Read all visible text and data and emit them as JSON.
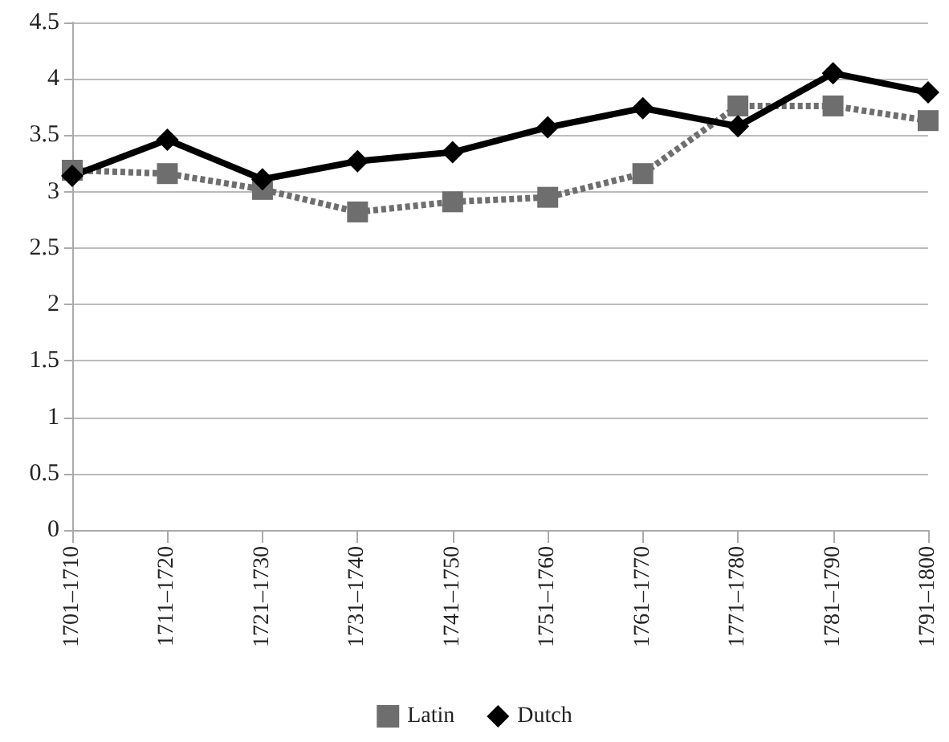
{
  "chart_data": {
    "type": "line",
    "categories": [
      "1701–1710",
      "1711–1720",
      "1721–1730",
      "1731–1740",
      "1741–1750",
      "1751–1760",
      "1761–1770",
      "1771–1780",
      "1781–1790",
      "1791–1800"
    ],
    "series": [
      {
        "name": "Latin",
        "color": "#6e6e6e",
        "marker": "square",
        "line_style": "dotted",
        "values": [
          3.19,
          3.16,
          3.02,
          2.82,
          2.91,
          2.95,
          3.16,
          3.76,
          3.76,
          3.63
        ]
      },
      {
        "name": "Dutch",
        "color": "#000000",
        "marker": "diamond",
        "line_style": "solid",
        "values": [
          3.14,
          3.46,
          3.11,
          3.27,
          3.35,
          3.57,
          3.74,
          3.58,
          4.05,
          3.88
        ]
      }
    ],
    "ylim": [
      0,
      4.5
    ],
    "yticks": [
      0,
      0.5,
      1,
      1.5,
      2,
      2.5,
      3,
      3.5,
      4,
      4.5
    ],
    "grid": "y",
    "legend": "bottom"
  }
}
